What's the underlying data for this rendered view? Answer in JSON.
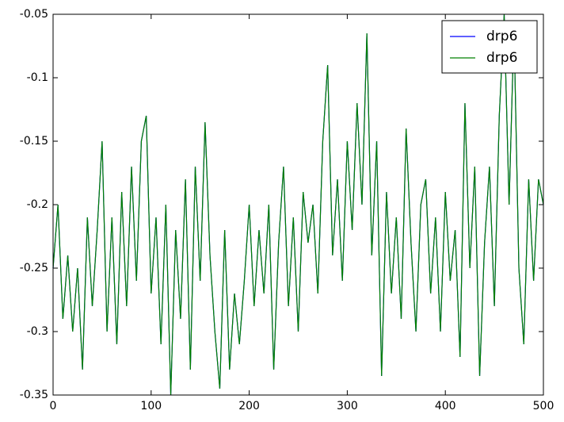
{
  "chart_data": {
    "type": "line",
    "x": [
      0,
      5,
      10,
      15,
      20,
      25,
      30,
      35,
      40,
      45,
      50,
      55,
      60,
      65,
      70,
      75,
      80,
      85,
      90,
      95,
      100,
      105,
      110,
      115,
      120,
      125,
      130,
      135,
      140,
      145,
      150,
      155,
      160,
      165,
      170,
      175,
      180,
      185,
      190,
      195,
      200,
      205,
      210,
      215,
      220,
      225,
      230,
      235,
      240,
      245,
      250,
      255,
      260,
      265,
      270,
      275,
      280,
      285,
      290,
      295,
      300,
      305,
      310,
      315,
      320,
      325,
      330,
      335,
      340,
      345,
      350,
      355,
      360,
      365,
      370,
      375,
      380,
      385,
      390,
      395,
      400,
      405,
      410,
      415,
      420,
      425,
      430,
      435,
      440,
      445,
      450,
      455,
      460,
      465,
      470,
      475,
      480,
      485,
      490,
      495,
      500
    ],
    "series": [
      {
        "name": "drp6",
        "color": "#0000ff",
        "values": [
          -0.25,
          -0.2,
          -0.29,
          -0.24,
          -0.3,
          -0.25,
          -0.33,
          -0.21,
          -0.28,
          -0.22,
          -0.15,
          -0.3,
          -0.21,
          -0.31,
          -0.19,
          -0.28,
          -0.17,
          -0.26,
          -0.15,
          -0.13,
          -0.27,
          -0.21,
          -0.31,
          -0.2,
          -0.35,
          -0.22,
          -0.29,
          -0.18,
          -0.33,
          -0.17,
          -0.26,
          -0.135,
          -0.24,
          -0.3,
          -0.345,
          -0.22,
          -0.33,
          -0.27,
          -0.31,
          -0.26,
          -0.2,
          -0.28,
          -0.22,
          -0.27,
          -0.2,
          -0.33,
          -0.23,
          -0.17,
          -0.28,
          -0.21,
          -0.3,
          -0.19,
          -0.23,
          -0.2,
          -0.27,
          -0.15,
          -0.09,
          -0.24,
          -0.18,
          -0.26,
          -0.15,
          -0.22,
          -0.12,
          -0.2,
          -0.065,
          -0.24,
          -0.15,
          -0.335,
          -0.19,
          -0.27,
          -0.21,
          -0.29,
          -0.14,
          -0.23,
          -0.3,
          -0.2,
          -0.18,
          -0.27,
          -0.21,
          -0.3,
          -0.19,
          -0.26,
          -0.22,
          -0.32,
          -0.12,
          -0.25,
          -0.17,
          -0.335,
          -0.23,
          -0.17,
          -0.28,
          -0.13,
          -0.05,
          -0.2,
          -0.06,
          -0.25,
          -0.31,
          -0.18,
          -0.26,
          -0.18,
          -0.2
        ]
      },
      {
        "name": "drp6",
        "color": "#008000",
        "values": [
          -0.25,
          -0.2,
          -0.29,
          -0.24,
          -0.3,
          -0.25,
          -0.33,
          -0.21,
          -0.28,
          -0.22,
          -0.15,
          -0.3,
          -0.21,
          -0.31,
          -0.19,
          -0.28,
          -0.17,
          -0.26,
          -0.15,
          -0.13,
          -0.27,
          -0.21,
          -0.31,
          -0.2,
          -0.35,
          -0.22,
          -0.29,
          -0.18,
          -0.33,
          -0.17,
          -0.26,
          -0.135,
          -0.24,
          -0.3,
          -0.345,
          -0.22,
          -0.33,
          -0.27,
          -0.31,
          -0.26,
          -0.2,
          -0.28,
          -0.22,
          -0.27,
          -0.2,
          -0.33,
          -0.23,
          -0.17,
          -0.28,
          -0.21,
          -0.3,
          -0.19,
          -0.23,
          -0.2,
          -0.27,
          -0.15,
          -0.09,
          -0.24,
          -0.18,
          -0.26,
          -0.15,
          -0.22,
          -0.12,
          -0.2,
          -0.065,
          -0.24,
          -0.15,
          -0.335,
          -0.19,
          -0.27,
          -0.21,
          -0.29,
          -0.14,
          -0.23,
          -0.3,
          -0.2,
          -0.18,
          -0.27,
          -0.21,
          -0.3,
          -0.19,
          -0.26,
          -0.22,
          -0.32,
          -0.12,
          -0.25,
          -0.17,
          -0.335,
          -0.23,
          -0.17,
          -0.28,
          -0.13,
          -0.05,
          -0.2,
          -0.06,
          -0.25,
          -0.31,
          -0.18,
          -0.26,
          -0.18,
          -0.2
        ]
      }
    ],
    "xlim": [
      0,
      500
    ],
    "xticks": [
      0,
      100,
      200,
      300,
      400,
      500
    ],
    "ylim": [
      -0.35,
      -0.05
    ],
    "yticks": [
      -0.35,
      -0.3,
      -0.25,
      -0.2,
      -0.15,
      -0.1,
      -0.05
    ],
    "legend": "upper right"
  }
}
